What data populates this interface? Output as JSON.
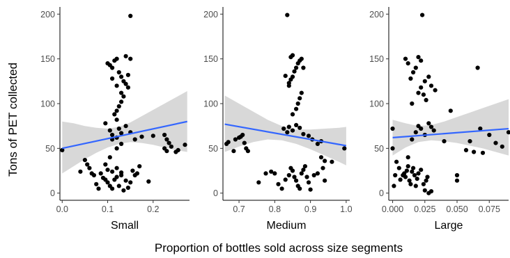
{
  "figure": {
    "ylabel": "Tons of PET collected",
    "xlabel": "Proportion of bottles sold across size segments"
  },
  "chart_data": [
    {
      "type": "scatter",
      "facet": "Small",
      "xlabel": "Small",
      "ylabel": "Tons of PET collected",
      "xlim": [
        -0.005,
        0.28
      ],
      "ylim": [
        -8,
        208
      ],
      "xticks": [
        0.0,
        0.1,
        0.2
      ],
      "xtick_labels": [
        "0.0",
        "0.1",
        "0.2"
      ],
      "yticks": [
        0,
        50,
        100,
        150,
        200
      ],
      "ytick_labels": [
        "0",
        "50",
        "100",
        "150",
        "200"
      ],
      "grid": false,
      "color": "#000000",
      "fit_color": "#3366ff",
      "band_color": "#bebebe",
      "trend": {
        "x": [
          0.0,
          0.275
        ],
        "y": [
          50,
          80
        ]
      },
      "ci_band": {
        "x": [
          0.0,
          0.025,
          0.05,
          0.075,
          0.1,
          0.125,
          0.15,
          0.175,
          0.2,
          0.225,
          0.25,
          0.275
        ],
        "lower": [
          22,
          30,
          38,
          45,
          51,
          55,
          57,
          56,
          54,
          51,
          48,
          46
        ],
        "upper": [
          80,
          78,
          75,
          73,
          72,
          74,
          79,
          86,
          93,
          100,
          107,
          114
        ]
      },
      "points": [
        [
          0.0,
          48
        ],
        [
          0.04,
          24
        ],
        [
          0.05,
          37
        ],
        [
          0.055,
          32
        ],
        [
          0.06,
          28
        ],
        [
          0.065,
          22
        ],
        [
          0.07,
          20
        ],
        [
          0.075,
          10
        ],
        [
          0.08,
          5
        ],
        [
          0.085,
          22
        ],
        [
          0.09,
          17
        ],
        [
          0.095,
          15
        ],
        [
          0.1,
          12
        ],
        [
          0.105,
          8
        ],
        [
          0.11,
          5
        ],
        [
          0.12,
          18
        ],
        [
          0.13,
          23
        ],
        [
          0.14,
          14
        ],
        [
          0.15,
          12
        ],
        [
          0.16,
          20
        ],
        [
          0.1,
          26
        ],
        [
          0.11,
          24
        ],
        [
          0.12,
          28
        ],
        [
          0.13,
          20
        ],
        [
          0.095,
          32
        ],
        [
          0.105,
          40
        ],
        [
          0.115,
          15
        ],
        [
          0.125,
          8
        ],
        [
          0.135,
          3
        ],
        [
          0.145,
          6
        ],
        [
          0.155,
          25
        ],
        [
          0.165,
          22
        ],
        [
          0.17,
          30
        ],
        [
          0.19,
          13
        ],
        [
          0.105,
          70
        ],
        [
          0.11,
          65
        ],
        [
          0.125,
          72
        ],
        [
          0.13,
          67
        ],
        [
          0.095,
          78
        ],
        [
          0.12,
          82
        ],
        [
          0.14,
          75
        ],
        [
          0.15,
          68
        ],
        [
          0.16,
          60
        ],
        [
          0.175,
          63
        ],
        [
          0.2,
          64
        ],
        [
          0.115,
          88
        ],
        [
          0.12,
          92
        ],
        [
          0.125,
          97
        ],
        [
          0.13,
          102
        ],
        [
          0.135,
          108
        ],
        [
          0.1,
          145
        ],
        [
          0.11,
          140
        ],
        [
          0.115,
          148
        ],
        [
          0.12,
          150
        ],
        [
          0.125,
          135
        ],
        [
          0.13,
          130
        ],
        [
          0.135,
          125
        ],
        [
          0.14,
          122
        ],
        [
          0.145,
          118
        ],
        [
          0.15,
          150
        ],
        [
          0.14,
          153
        ],
        [
          0.11,
          128
        ],
        [
          0.12,
          120
        ],
        [
          0.13,
          112
        ],
        [
          0.145,
          132
        ],
        [
          0.105,
          143
        ],
        [
          0.15,
          198
        ],
        [
          0.225,
          65
        ],
        [
          0.23,
          60
        ],
        [
          0.235,
          56
        ],
        [
          0.24,
          52
        ],
        [
          0.225,
          50
        ],
        [
          0.23,
          47
        ],
        [
          0.25,
          46
        ],
        [
          0.255,
          48
        ],
        [
          0.27,
          54
        ],
        [
          0.12,
          50
        ],
        [
          0.13,
          55
        ],
        [
          0.11,
          60
        ],
        [
          0.12,
          62
        ]
      ]
    },
    {
      "type": "scatter",
      "facet": "Medium",
      "xlabel": "Medium",
      "xlim": [
        0.655,
        1.01
      ],
      "ylim": [
        -8,
        208
      ],
      "xticks": [
        0.7,
        0.8,
        0.9,
        1.0
      ],
      "xtick_labels": [
        "0.7",
        "0.8",
        "0.9",
        "1.0"
      ],
      "yticks": [
        0,
        50,
        100,
        150,
        200
      ],
      "ytick_labels": [
        "0",
        "50",
        "100",
        "150",
        "200"
      ],
      "grid": false,
      "color": "#000000",
      "fit_color": "#3366ff",
      "band_color": "#bebebe",
      "trend": {
        "x": [
          0.66,
          1.0
        ],
        "y": [
          77,
          53
        ]
      },
      "ci_band": {
        "x": [
          0.66,
          0.7,
          0.74,
          0.78,
          0.82,
          0.86,
          0.9,
          0.94,
          0.98,
          1.0
        ],
        "lower": [
          46,
          52,
          57,
          60,
          59,
          55,
          49,
          42,
          35,
          31
        ],
        "upper": [
          109,
          100,
          91,
          82,
          75,
          71,
          71,
          72,
          73,
          74
        ]
      },
      "points": [
        [
          0.665,
          55
        ],
        [
          0.67,
          57
        ],
        [
          0.685,
          47
        ],
        [
          0.69,
          60
        ],
        [
          0.7,
          62
        ],
        [
          0.705,
          63
        ],
        [
          0.71,
          65
        ],
        [
          0.715,
          56
        ],
        [
          0.72,
          50
        ],
        [
          0.725,
          47
        ],
        [
          0.755,
          12
        ],
        [
          0.775,
          22
        ],
        [
          0.79,
          24
        ],
        [
          0.8,
          22
        ],
        [
          0.81,
          10
        ],
        [
          0.82,
          5
        ],
        [
          0.83,
          15
        ],
        [
          0.84,
          20
        ],
        [
          0.845,
          28
        ],
        [
          0.85,
          25
        ],
        [
          0.855,
          18
        ],
        [
          0.86,
          14
        ],
        [
          0.865,
          8
        ],
        [
          0.87,
          5
        ],
        [
          0.875,
          22
        ],
        [
          0.88,
          26
        ],
        [
          0.885,
          30
        ],
        [
          0.89,
          18
        ],
        [
          0.895,
          12
        ],
        [
          0.9,
          4
        ],
        [
          0.91,
          20
        ],
        [
          0.92,
          22
        ],
        [
          0.935,
          28
        ],
        [
          0.94,
          36
        ],
        [
          0.825,
          72
        ],
        [
          0.835,
          68
        ],
        [
          0.84,
          74
        ],
        [
          0.85,
          70
        ],
        [
          0.86,
          76
        ],
        [
          0.87,
          73
        ],
        [
          0.88,
          66
        ],
        [
          0.895,
          64
        ],
        [
          0.905,
          60
        ],
        [
          0.92,
          55
        ],
        [
          0.93,
          58
        ],
        [
          0.85,
          88
        ],
        [
          0.86,
          94
        ],
        [
          0.865,
          100
        ],
        [
          0.87,
          106
        ],
        [
          0.875,
          112
        ],
        [
          0.84,
          120
        ],
        [
          0.845,
          127
        ],
        [
          0.85,
          130
        ],
        [
          0.855,
          136
        ],
        [
          0.86,
          140
        ],
        [
          0.865,
          145
        ],
        [
          0.87,
          148
        ],
        [
          0.875,
          150
        ],
        [
          0.88,
          140
        ],
        [
          0.845,
          152
        ],
        [
          0.85,
          154
        ],
        [
          0.83,
          131
        ],
        [
          0.84,
          123
        ],
        [
          0.835,
          199
        ],
        [
          0.995,
          50
        ],
        [
          0.93,
          40
        ],
        [
          0.96,
          35
        ],
        [
          0.94,
          14
        ]
      ]
    },
    {
      "type": "scatter",
      "facet": "Large",
      "xlabel": "Large",
      "xlim": [
        -0.003,
        0.09
      ],
      "ylim": [
        -8,
        208
      ],
      "xticks": [
        0.0,
        0.025,
        0.05,
        0.075
      ],
      "xtick_labels": [
        "0.000",
        "0.025",
        "0.050",
        "0.075"
      ],
      "yticks": [
        0,
        50,
        100,
        150,
        200
      ],
      "ytick_labels": [
        "0",
        "50",
        "100",
        "150",
        "200"
      ],
      "grid": false,
      "color": "#000000",
      "fit_color": "#3366ff",
      "band_color": "#bebebe",
      "trend": {
        "x": [
          0.0,
          0.09
        ],
        "y": [
          62,
          72
        ]
      },
      "ci_band": {
        "x": [
          0.0,
          0.01,
          0.02,
          0.03,
          0.04,
          0.05,
          0.06,
          0.07,
          0.08,
          0.09
        ],
        "lower": [
          42,
          51,
          57,
          59,
          58,
          56,
          53,
          50,
          46,
          42
        ],
        "upper": [
          82,
          78,
          75,
          76,
          80,
          85,
          90,
          95,
          100,
          105
        ]
      },
      "points": [
        [
          0.0,
          50
        ],
        [
          0.001,
          8
        ],
        [
          0.002,
          20
        ],
        [
          0.003,
          35
        ],
        [
          0.005,
          28
        ],
        [
          0.006,
          15
        ],
        [
          0.008,
          20
        ],
        [
          0.009,
          22
        ],
        [
          0.01,
          18
        ],
        [
          0.011,
          25
        ],
        [
          0.012,
          30
        ],
        [
          0.013,
          14
        ],
        [
          0.014,
          10
        ],
        [
          0.015,
          24
        ],
        [
          0.016,
          28
        ],
        [
          0.017,
          20
        ],
        [
          0.018,
          8
        ],
        [
          0.019,
          16
        ],
        [
          0.02,
          22
        ],
        [
          0.022,
          26
        ],
        [
          0.024,
          10
        ],
        [
          0.025,
          3
        ],
        [
          0.026,
          14
        ],
        [
          0.027,
          18
        ],
        [
          0.028,
          0
        ],
        [
          0.03,
          2
        ],
        [
          0.012,
          40
        ],
        [
          0.015,
          60
        ],
        [
          0.018,
          68
        ],
        [
          0.02,
          75
        ],
        [
          0.022,
          72
        ],
        [
          0.025,
          65
        ],
        [
          0.028,
          78
        ],
        [
          0.03,
          74
        ],
        [
          0.032,
          70
        ],
        [
          0.015,
          100
        ],
        [
          0.02,
          112
        ],
        [
          0.022,
          118
        ],
        [
          0.025,
          125
        ],
        [
          0.028,
          130
        ],
        [
          0.01,
          150
        ],
        [
          0.012,
          145
        ],
        [
          0.014,
          128
        ],
        [
          0.016,
          135
        ],
        [
          0.018,
          140
        ],
        [
          0.02,
          152
        ],
        [
          0.022,
          148
        ],
        [
          0.024,
          110
        ],
        [
          0.026,
          104
        ],
        [
          0.03,
          120
        ],
        [
          0.033,
          115
        ],
        [
          0.023,
          199
        ],
        [
          0.045,
          92
        ],
        [
          0.05,
          20
        ],
        [
          0.05,
          14
        ],
        [
          0.057,
          48
        ],
        [
          0.06,
          58
        ],
        [
          0.063,
          46
        ],
        [
          0.066,
          140
        ],
        [
          0.068,
          72
        ],
        [
          0.07,
          45
        ],
        [
          0.075,
          65
        ],
        [
          0.08,
          56
        ],
        [
          0.085,
          52
        ],
        [
          0.09,
          68
        ],
        [
          0.04,
          58
        ],
        [
          0.0,
          72
        ]
      ]
    }
  ]
}
